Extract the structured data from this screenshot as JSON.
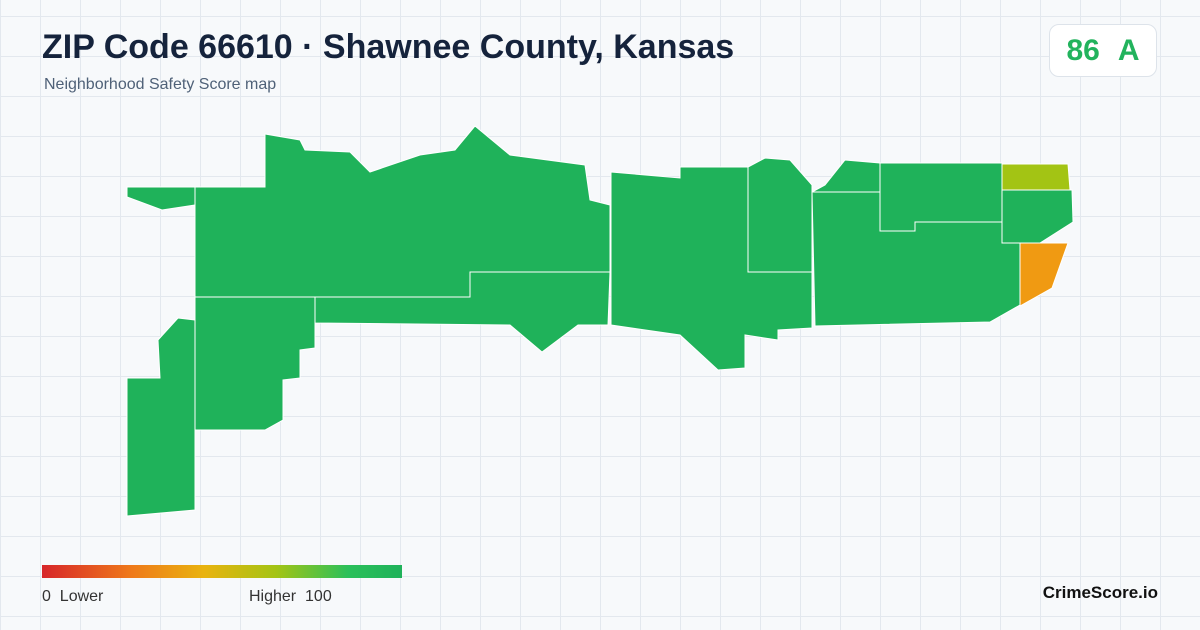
{
  "header": {
    "title": "ZIP Code 66610 · Shawnee County, Kansas",
    "subtitle": "Neighborhood Safety Score map"
  },
  "score": {
    "value": 86,
    "grade": "A"
  },
  "legend": {
    "min": 0,
    "min_label": "Lower",
    "max_label": "Higher",
    "max": 100
  },
  "brand": "CrimeScore.io"
}
